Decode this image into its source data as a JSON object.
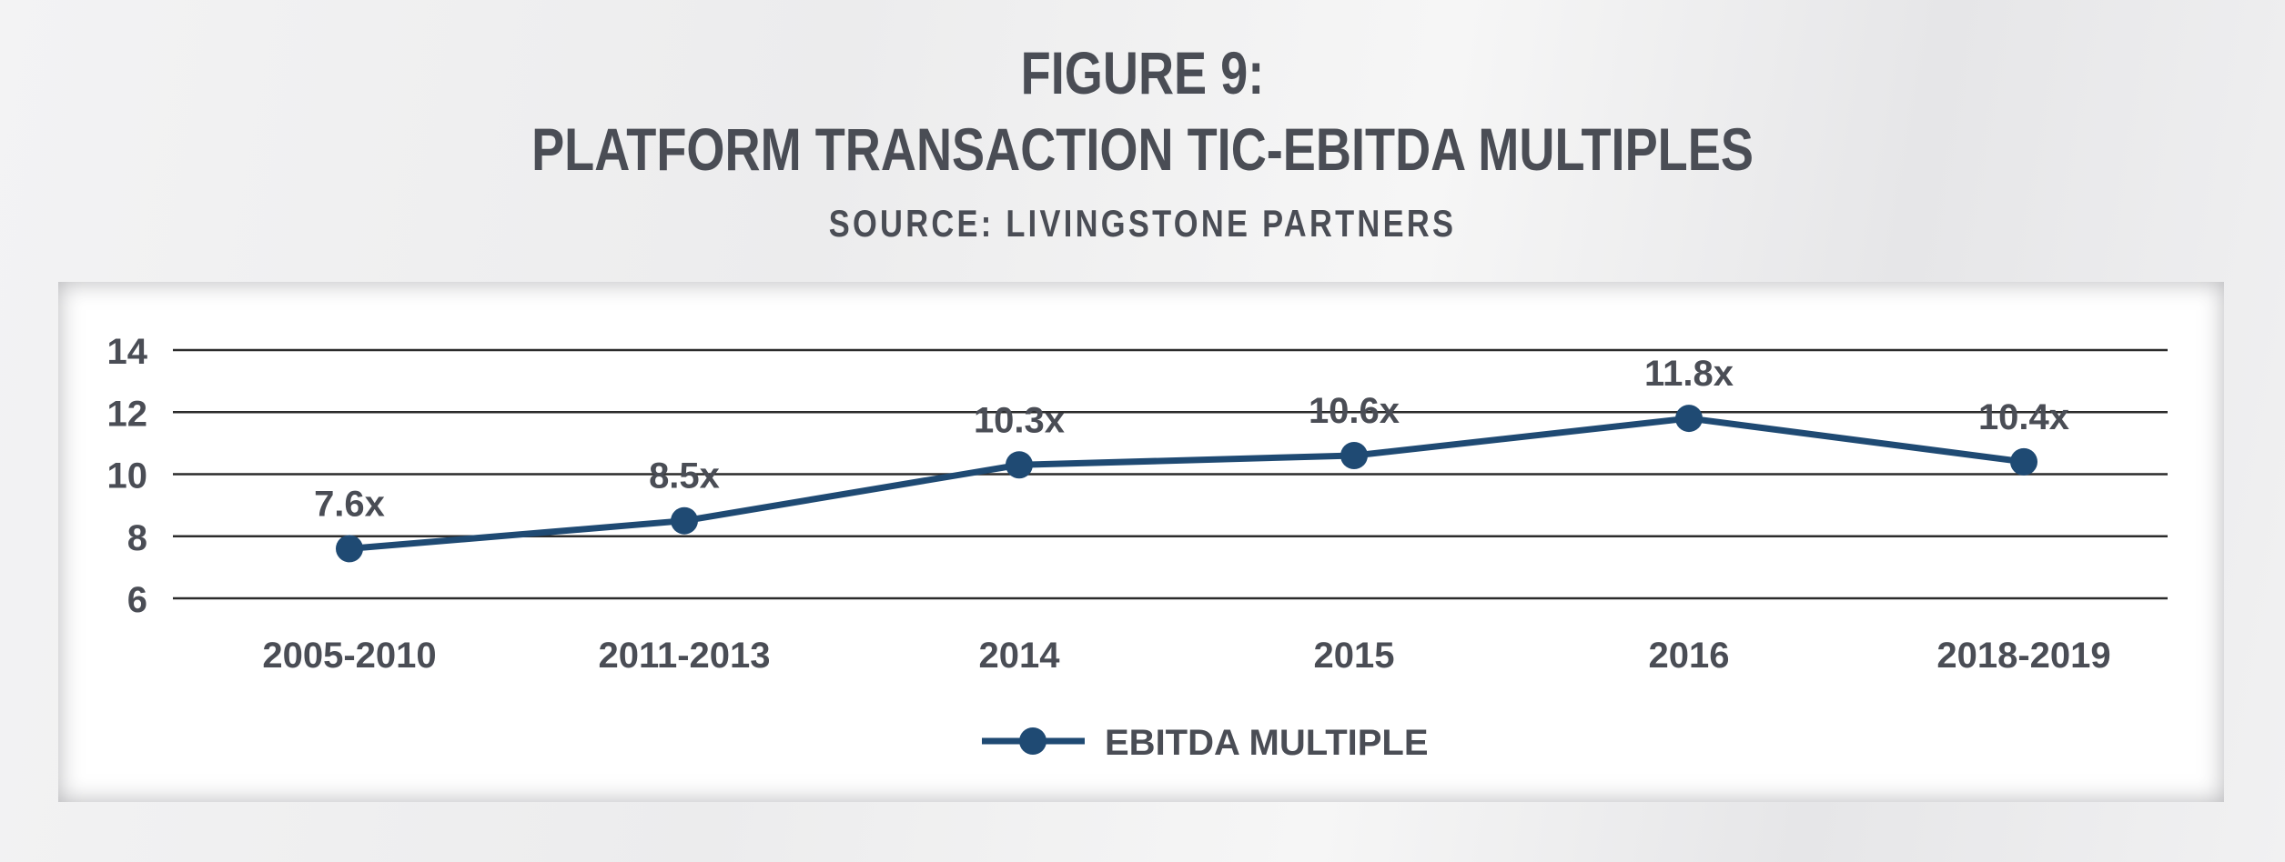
{
  "header": {
    "figure_label": "FIGURE 9:",
    "title": "PLATFORM TRANSACTION TIC-EBITDA MULTIPLES",
    "source": "SOURCE: LIVINGSTONE PARTNERS"
  },
  "colors": {
    "series": "#1f4a73",
    "text": "#4a4d55",
    "grid": "#2b2b2b"
  },
  "chart_data": {
    "type": "line",
    "title": "PLATFORM TRANSACTION TIC-EBITDA MULTIPLES",
    "xlabel": "",
    "ylabel": "",
    "categories": [
      "2005-2010",
      "2011-2013",
      "2014",
      "2015",
      "2016",
      "2018-2019"
    ],
    "series": [
      {
        "name": "EBITDA MULTIPLE",
        "values": [
          7.6,
          8.5,
          10.3,
          10.6,
          11.8,
          10.4
        ],
        "labels": [
          "7.6x",
          "8.5x",
          "10.3x",
          "10.6x",
          "11.8x",
          "10.4x"
        ]
      }
    ],
    "ylim": [
      6,
      14
    ],
    "yticks": [
      6,
      8,
      10,
      12,
      14
    ],
    "grid": true,
    "legend": "bottom-center"
  }
}
